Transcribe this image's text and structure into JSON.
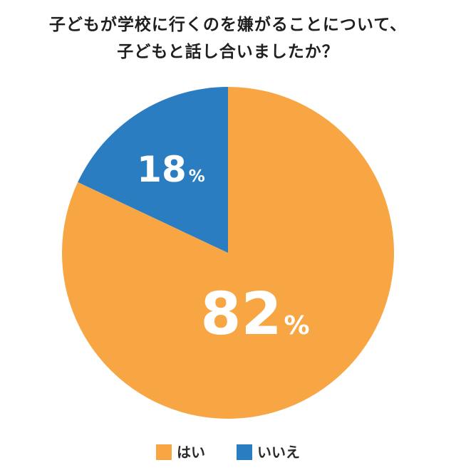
{
  "chart_data": {
    "type": "pie",
    "title_lines": [
      "子どもが学校に行くのを嫌がることについて、",
      "子どもと話し合いましたか？"
    ],
    "slices": [
      {
        "name": "はい",
        "value": 82,
        "label": "82",
        "unit": "%",
        "color": "#F8A643"
      },
      {
        "name": "いいえ",
        "value": 18,
        "label": "18",
        "unit": "%",
        "color": "#2A7DC1"
      }
    ],
    "label_color": "#ffffff",
    "legend": [
      "はい",
      "いいえ"
    ],
    "legend_placement": "bottom"
  }
}
